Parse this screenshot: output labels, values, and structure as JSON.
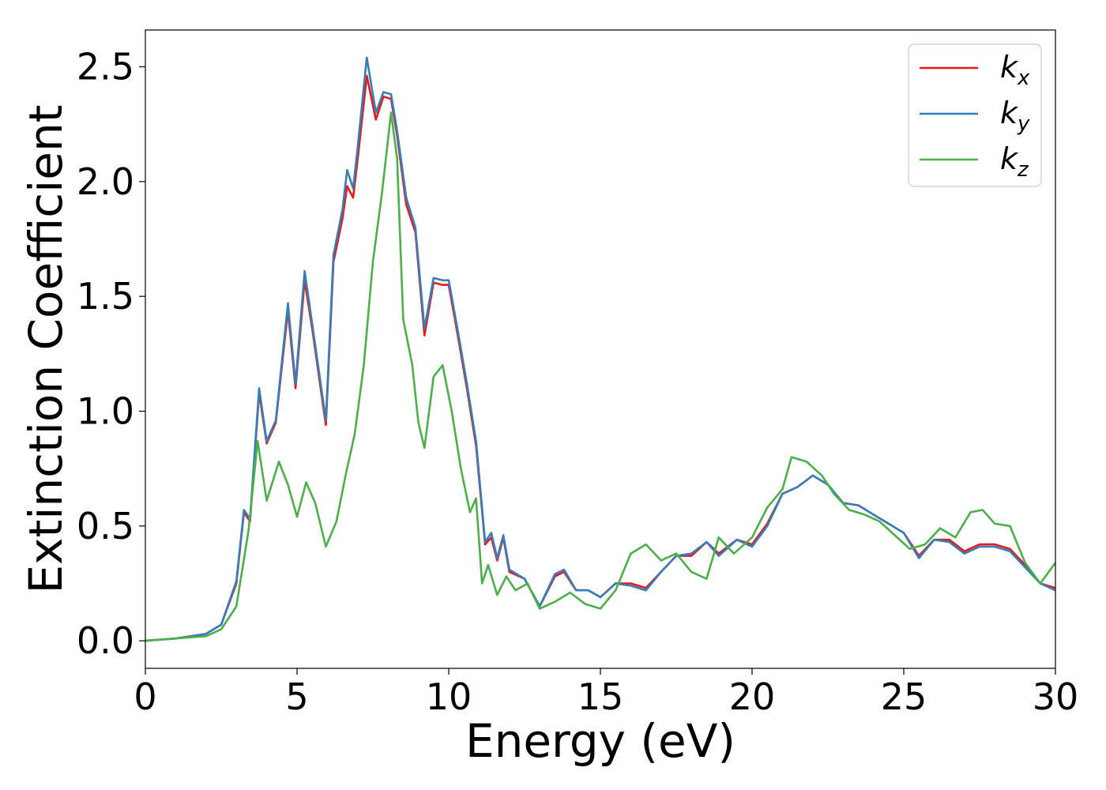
{
  "chart_data": {
    "type": "line",
    "title": "",
    "xlabel": "Energy (eV)",
    "ylabel": "Extinction Coefficient",
    "xlim": [
      0,
      30
    ],
    "ylim": [
      -0.12,
      2.66
    ],
    "xticks": [
      0,
      5,
      10,
      15,
      20,
      25,
      30
    ],
    "xtick_labels": [
      "0",
      "5",
      "10",
      "15",
      "20",
      "25",
      "30"
    ],
    "yticks": [
      0.0,
      0.5,
      1.0,
      1.5,
      2.0,
      2.5
    ],
    "ytick_labels": [
      "0.0",
      "0.5",
      "1.0",
      "1.5",
      "2.0",
      "2.5"
    ],
    "grid": false,
    "legend_position": "top-right",
    "series": [
      {
        "name": "k_x",
        "legend_base": "k",
        "legend_sub": "x",
        "color": "#e41a1c",
        "x": [
          0,
          1,
          2,
          2.5,
          3.0,
          3.25,
          3.45,
          3.75,
          4.0,
          4.3,
          4.7,
          4.95,
          5.25,
          5.5,
          5.95,
          6.2,
          6.5,
          6.65,
          6.85,
          7.0,
          7.3,
          7.6,
          7.85,
          8.1,
          8.3,
          8.6,
          8.9,
          9.2,
          9.5,
          9.8,
          10.0,
          10.3,
          10.6,
          10.9,
          11.2,
          11.4,
          11.6,
          11.8,
          12.0,
          12.5,
          13.0,
          13.5,
          13.8,
          14.2,
          14.6,
          15.0,
          15.5,
          16.0,
          16.5,
          17.0,
          17.5,
          18.0,
          18.5,
          18.9,
          19.5,
          20.0,
          20.5,
          21.0,
          21.5,
          22.0,
          22.5,
          23.0,
          23.5,
          24.0,
          24.5,
          25.0,
          25.5,
          26.0,
          26.5,
          27.0,
          27.5,
          28.0,
          28.5,
          29.0,
          29.5,
          30.0
        ],
        "y": [
          0.0,
          0.01,
          0.03,
          0.07,
          0.25,
          0.56,
          0.52,
          1.08,
          0.86,
          0.95,
          1.44,
          1.1,
          1.57,
          1.36,
          0.94,
          1.65,
          1.84,
          1.98,
          1.93,
          2.1,
          2.46,
          2.27,
          2.37,
          2.36,
          2.2,
          1.9,
          1.78,
          1.33,
          1.56,
          1.55,
          1.55,
          1.33,
          1.1,
          0.85,
          0.42,
          0.45,
          0.35,
          0.45,
          0.3,
          0.27,
          0.15,
          0.28,
          0.3,
          0.22,
          0.22,
          0.19,
          0.25,
          0.25,
          0.23,
          0.3,
          0.37,
          0.37,
          0.43,
          0.38,
          0.44,
          0.42,
          0.51,
          0.64,
          0.67,
          0.72,
          0.68,
          0.6,
          0.59,
          0.55,
          0.51,
          0.47,
          0.37,
          0.44,
          0.44,
          0.39,
          0.42,
          0.42,
          0.4,
          0.33,
          0.25,
          0.23
        ]
      },
      {
        "name": "k_y",
        "legend_base": "k",
        "legend_sub": "y",
        "color": "#377eb8",
        "x": [
          0,
          1,
          2,
          2.5,
          3.0,
          3.25,
          3.45,
          3.75,
          4.0,
          4.3,
          4.7,
          4.95,
          5.25,
          5.5,
          5.95,
          6.2,
          6.5,
          6.65,
          6.85,
          7.0,
          7.3,
          7.6,
          7.85,
          8.1,
          8.3,
          8.6,
          8.9,
          9.2,
          9.5,
          9.8,
          10.0,
          10.3,
          10.6,
          10.9,
          11.2,
          11.4,
          11.6,
          11.8,
          12.0,
          12.5,
          13.0,
          13.5,
          13.8,
          14.2,
          14.6,
          15.0,
          15.5,
          16.0,
          16.5,
          17.0,
          17.5,
          18.0,
          18.5,
          18.9,
          19.5,
          20.0,
          20.5,
          21.0,
          21.5,
          22.0,
          22.5,
          23.0,
          23.5,
          24.0,
          24.5,
          25.0,
          25.5,
          26.0,
          26.5,
          27.0,
          27.5,
          28.0,
          28.5,
          29.0,
          29.5,
          30.0
        ],
        "y": [
          0.0,
          0.01,
          0.03,
          0.07,
          0.26,
          0.57,
          0.53,
          1.1,
          0.87,
          0.96,
          1.47,
          1.12,
          1.61,
          1.38,
          0.96,
          1.68,
          1.88,
          2.05,
          1.97,
          2.15,
          2.54,
          2.3,
          2.39,
          2.38,
          2.22,
          1.93,
          1.8,
          1.36,
          1.58,
          1.57,
          1.57,
          1.35,
          1.12,
          0.87,
          0.43,
          0.47,
          0.36,
          0.46,
          0.31,
          0.27,
          0.15,
          0.29,
          0.31,
          0.22,
          0.22,
          0.19,
          0.25,
          0.24,
          0.22,
          0.3,
          0.37,
          0.38,
          0.43,
          0.37,
          0.44,
          0.41,
          0.5,
          0.64,
          0.67,
          0.72,
          0.68,
          0.6,
          0.59,
          0.55,
          0.51,
          0.47,
          0.36,
          0.44,
          0.43,
          0.38,
          0.41,
          0.41,
          0.39,
          0.32,
          0.25,
          0.22
        ]
      },
      {
        "name": "k_z",
        "legend_base": "k",
        "legend_sub": "z",
        "color": "#4daf4a",
        "x": [
          0,
          1,
          2,
          2.5,
          3.0,
          3.4,
          3.7,
          4.0,
          4.4,
          4.7,
          5.0,
          5.3,
          5.6,
          5.95,
          6.3,
          6.6,
          6.9,
          7.2,
          7.5,
          7.8,
          8.1,
          8.3,
          8.5,
          8.8,
          9.0,
          9.2,
          9.5,
          9.8,
          10.1,
          10.4,
          10.7,
          10.9,
          11.1,
          11.3,
          11.6,
          11.9,
          12.2,
          12.6,
          13.0,
          13.5,
          14.0,
          14.5,
          15.0,
          15.5,
          16.0,
          16.5,
          17.0,
          17.5,
          18.0,
          18.5,
          18.9,
          19.4,
          20.0,
          20.5,
          21.0,
          21.3,
          21.8,
          22.3,
          22.7,
          23.2,
          23.7,
          24.2,
          24.7,
          25.2,
          25.7,
          26.2,
          26.7,
          27.2,
          27.6,
          28.0,
          28.5,
          29.0,
          29.5,
          30.0
        ],
        "y": [
          0.0,
          0.01,
          0.02,
          0.05,
          0.15,
          0.48,
          0.87,
          0.61,
          0.78,
          0.68,
          0.54,
          0.69,
          0.6,
          0.41,
          0.52,
          0.72,
          0.9,
          1.2,
          1.65,
          1.95,
          2.3,
          2.1,
          1.4,
          1.2,
          0.95,
          0.84,
          1.15,
          1.2,
          1.0,
          0.75,
          0.56,
          0.62,
          0.25,
          0.33,
          0.2,
          0.28,
          0.22,
          0.25,
          0.14,
          0.17,
          0.21,
          0.16,
          0.14,
          0.22,
          0.38,
          0.42,
          0.35,
          0.38,
          0.3,
          0.27,
          0.45,
          0.38,
          0.45,
          0.58,
          0.66,
          0.8,
          0.78,
          0.72,
          0.64,
          0.57,
          0.55,
          0.52,
          0.46,
          0.4,
          0.42,
          0.49,
          0.45,
          0.56,
          0.57,
          0.51,
          0.5,
          0.34,
          0.25,
          0.34
        ]
      }
    ]
  }
}
